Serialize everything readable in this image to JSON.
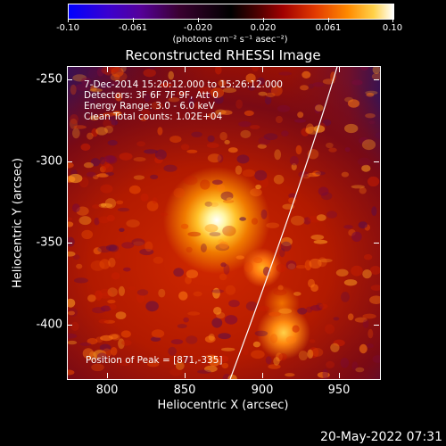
{
  "colorbar": {
    "ticks": [
      "-0.10",
      "-0.061",
      "-0.020",
      "0.020",
      "0.061",
      "0.10"
    ],
    "units_label": "(photons cm⁻² s⁻¹ asec⁻²)"
  },
  "plot": {
    "title": "Reconstructed RHESSI Image",
    "info_lines": [
      "7-Dec-2014 15:20:12.000 to 15:26:12.000",
      "Detectors: 3F 6F 7F 9F, Att 0",
      "Energy Range: 3.0 - 6.0 keV",
      "Clean    Total counts: 1.02E+04"
    ],
    "peak_label": "Position of Peak = [871,-335]",
    "x_axis": {
      "title": "Heliocentric X (arcsec)",
      "ticks": [
        "800",
        "850",
        "900",
        "950"
      ]
    },
    "y_axis": {
      "title": "Heliocentric Y (arcsec)",
      "ticks": [
        "-250",
        "-300",
        "-350",
        "-400"
      ]
    }
  },
  "footer": {
    "timestamp": "20-May-2022 07:31"
  }
}
